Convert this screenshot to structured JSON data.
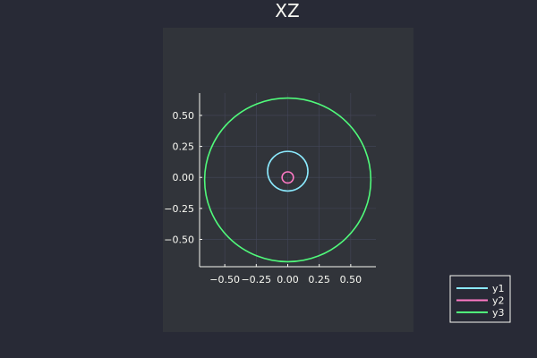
{
  "chart_data": {
    "type": "line",
    "title": "XZ",
    "xlabel": "",
    "ylabel": "",
    "xticks": [
      -0.5,
      -0.25,
      0.0,
      0.25,
      0.5
    ],
    "xtick_labels": [
      "−0.50",
      "−0.25",
      "0.00",
      "0.25",
      "0.50"
    ],
    "yticks": [
      0.5,
      0.25,
      0.0,
      -0.25,
      -0.5
    ],
    "ytick_labels": [
      "0.50",
      "0.25",
      "0.00",
      "−0.25",
      "−0.50"
    ],
    "xlim": [
      -0.7,
      0.7
    ],
    "ylim": [
      -0.72,
      0.68
    ],
    "grid": true,
    "legend_position": "bottom-right",
    "series": [
      {
        "name": "y1",
        "shape": "circle",
        "center": [
          0.0,
          0.05
        ],
        "radius": 0.16,
        "color": "#8be9fd"
      },
      {
        "name": "y2",
        "shape": "circle",
        "center": [
          0.0,
          0.0
        ],
        "radius": 0.045,
        "color": "#ff79c6"
      },
      {
        "name": "y3",
        "shape": "circle",
        "center": [
          0.0,
          -0.02
        ],
        "radius": 0.66,
        "color": "#50fa7b"
      }
    ]
  },
  "colors": {
    "background": "#282a36",
    "plot_panel": "#31343a",
    "axis": "#f8f8f2",
    "grid": "#44475a"
  }
}
